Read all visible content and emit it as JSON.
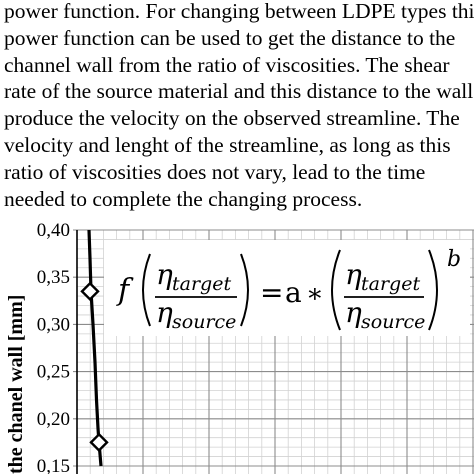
{
  "paragraph": {
    "lines": [
      "power function. For changing between LDPE types this",
      "power function can be used to get the distance to the",
      "channel wall from the ratio of viscosities. The shear",
      "rate of the source material and this distance to the wall",
      "produce the velocity on the observed streamline. The",
      "velocity and lenght of the streamline, as long as this",
      "ratio of viscosities does not vary, lead to the time",
      "needed to complete the changing process."
    ]
  },
  "figure": {
    "equation": {
      "f": "f",
      "eta": "η",
      "target": "target",
      "source": "source",
      "equals": "=",
      "a": "a",
      "times": "∗",
      "b": "b"
    }
  },
  "chart_data": {
    "type": "scatter",
    "ylabel": "the chanel wall [mm]",
    "ylim": [
      0.15,
      0.4
    ],
    "yticks": [
      "0,40",
      "0,35",
      "0,30",
      "0,25",
      "0,20",
      "0,15"
    ],
    "ytick_values": [
      0.4,
      0.35,
      0.3,
      0.25,
      0.2,
      0.15
    ],
    "grid": true,
    "series": [
      {
        "marker": "diamond",
        "points": [
          {
            "y": 0.335
          },
          {
            "y": 0.175
          }
        ]
      }
    ],
    "curve_y": [
      0.4,
      0.37,
      0.335,
      0.3,
      0.26,
      0.22,
      0.19,
      0.175,
      0.15
    ]
  }
}
